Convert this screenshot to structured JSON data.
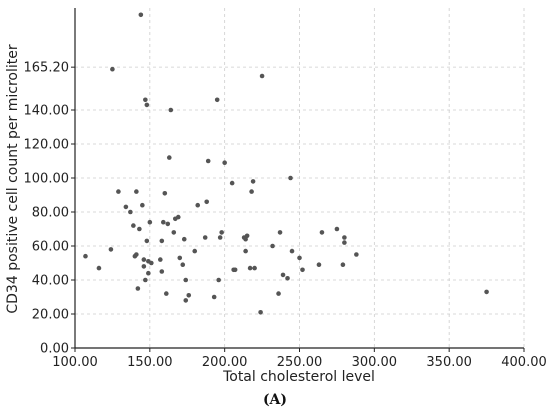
{
  "caption": "(A)",
  "chart_data": {
    "type": "scatter",
    "xlabel": "Total cholesterol level",
    "ylabel": "CD34 positive cell count per microliter",
    "xlim": [
      100,
      400
    ],
    "ylim": [
      0,
      200
    ],
    "x_ticks": [
      "100.00",
      "150.00",
      "200.00",
      "250.00",
      "300.00",
      "350.00",
      "400.00"
    ],
    "y_ticks": [
      "0.00",
      "20.00",
      "40.00",
      "60.00",
      "80.00",
      "100.00",
      "120.00",
      "140.00",
      "165.20"
    ],
    "y_tick_values": [
      0,
      20,
      40,
      60,
      80,
      100,
      120,
      140,
      165.2
    ],
    "grid": true,
    "marker_color": "#555555",
    "series": [
      {
        "points": [
          [
            107,
            54
          ],
          [
            116,
            47
          ],
          [
            124,
            58
          ],
          [
            125,
            164
          ],
          [
            129,
            92
          ],
          [
            134,
            83
          ],
          [
            137,
            80
          ],
          [
            139,
            72
          ],
          [
            140,
            54
          ],
          [
            141,
            55
          ],
          [
            141,
            92
          ],
          [
            142,
            35
          ],
          [
            143,
            70
          ],
          [
            144,
            196
          ],
          [
            145,
            84
          ],
          [
            146,
            52
          ],
          [
            146,
            48
          ],
          [
            147,
            146
          ],
          [
            147,
            40
          ],
          [
            148,
            143
          ],
          [
            148,
            63
          ],
          [
            149,
            51
          ],
          [
            149,
            44
          ],
          [
            150,
            74
          ],
          [
            151,
            50
          ],
          [
            157,
            52
          ],
          [
            158,
            45
          ],
          [
            158,
            63
          ],
          [
            159,
            74
          ],
          [
            160,
            91
          ],
          [
            161,
            32
          ],
          [
            162,
            73
          ],
          [
            163,
            112
          ],
          [
            164,
            140
          ],
          [
            166,
            68
          ],
          [
            167,
            76
          ],
          [
            169,
            77
          ],
          [
            170,
            53
          ],
          [
            172,
            49
          ],
          [
            173,
            64
          ],
          [
            174,
            40
          ],
          [
            174,
            28
          ],
          [
            176,
            31
          ],
          [
            180,
            57
          ],
          [
            182,
            84
          ],
          [
            187,
            65
          ],
          [
            188,
            86
          ],
          [
            189,
            110
          ],
          [
            193,
            30
          ],
          [
            195,
            146
          ],
          [
            196,
            40
          ],
          [
            197,
            65
          ],
          [
            198,
            68
          ],
          [
            200,
            109
          ],
          [
            205,
            97
          ],
          [
            206,
            46
          ],
          [
            207,
            46
          ],
          [
            213,
            65
          ],
          [
            214,
            64
          ],
          [
            214,
            57
          ],
          [
            215,
            66
          ],
          [
            217,
            47
          ],
          [
            218,
            92
          ],
          [
            219,
            98
          ],
          [
            220,
            47
          ],
          [
            224,
            21
          ],
          [
            225,
            160
          ],
          [
            232,
            60
          ],
          [
            236,
            32
          ],
          [
            237,
            68
          ],
          [
            239,
            43
          ],
          [
            242,
            41
          ],
          [
            244,
            100
          ],
          [
            245,
            57
          ],
          [
            250,
            53
          ],
          [
            252,
            46
          ],
          [
            263,
            49
          ],
          [
            265,
            68
          ],
          [
            275,
            70
          ],
          [
            279,
            49
          ],
          [
            280,
            62
          ],
          [
            280,
            65
          ],
          [
            288,
            55
          ],
          [
            375,
            33
          ]
        ]
      }
    ]
  }
}
